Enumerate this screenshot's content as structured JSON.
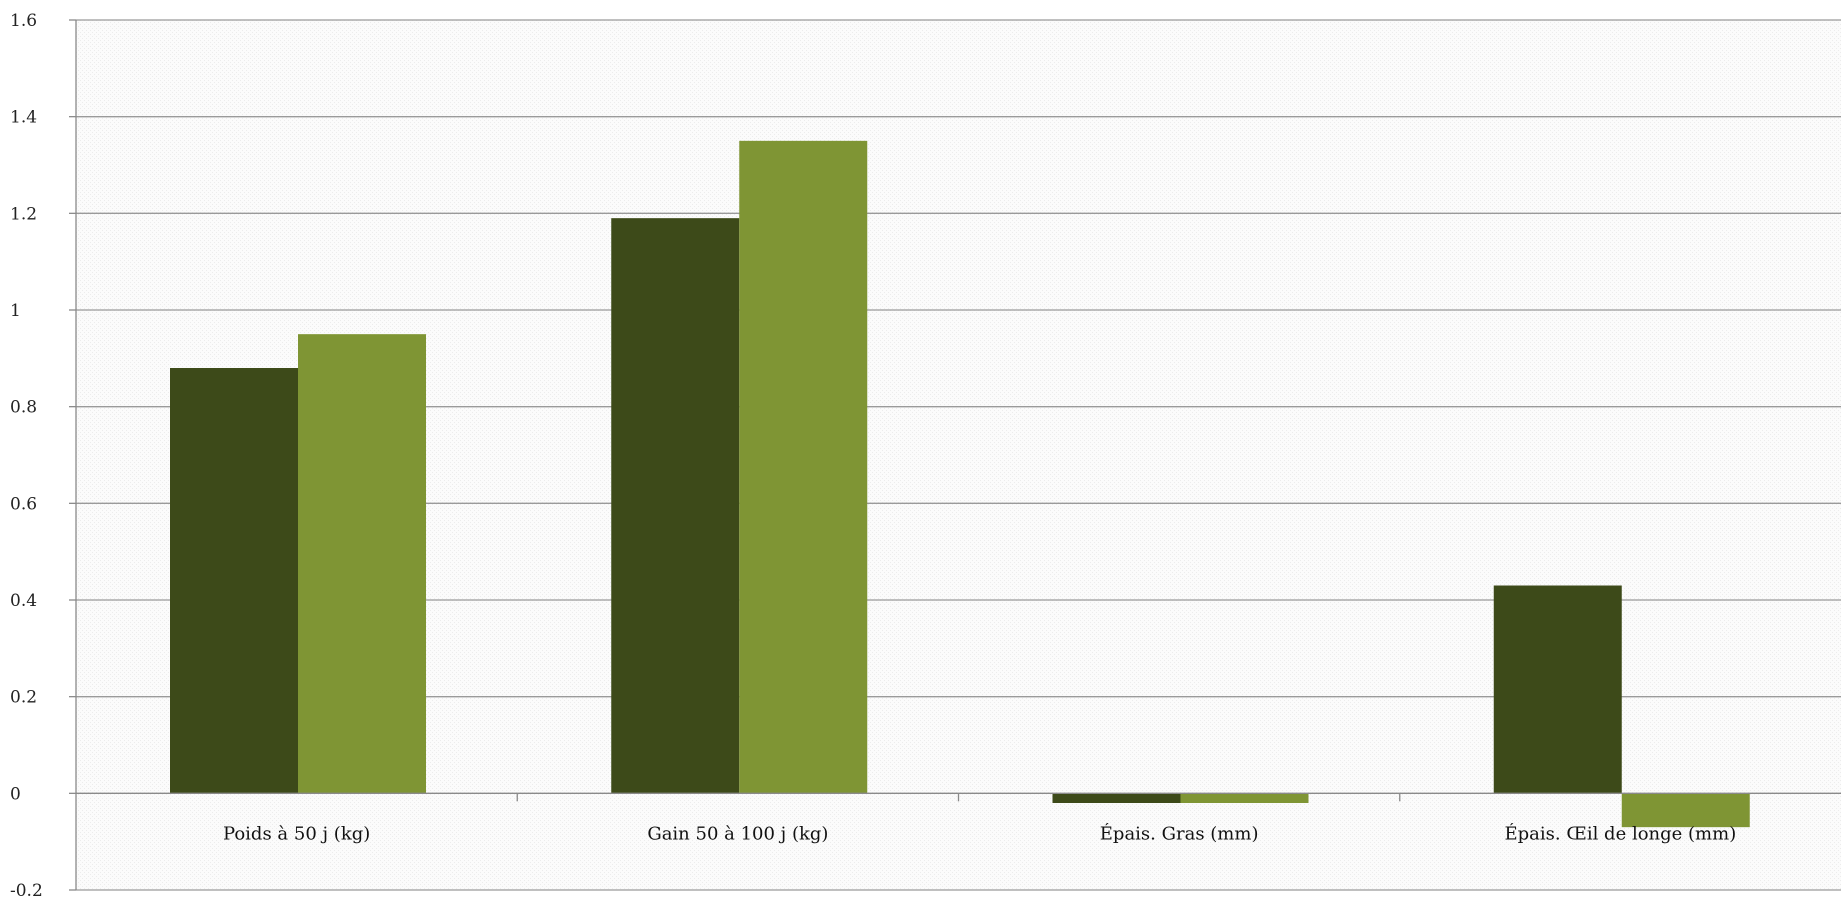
{
  "chart_data": {
    "type": "bar",
    "categories": [
      "Poids à 50 j (kg)",
      "Gain 50 à 100 j (kg)",
      "Épais. Gras (mm)",
      "Épais. Œil de longe (mm)"
    ],
    "series": [
      {
        "values": [
          0.88,
          1.19,
          -0.02,
          0.43
        ],
        "color": "#3d4a19"
      },
      {
        "values": [
          0.95,
          1.35,
          -0.02,
          -0.07
        ],
        "color": "#7f9534"
      }
    ],
    "ylim": [
      -0.2,
      1.6
    ],
    "yticks": [
      "-0.2",
      "0",
      "0.2",
      "0.4",
      "0.6",
      "0.8",
      "1",
      "1.2",
      "1.4",
      "1.6"
    ],
    "grid": true,
    "legend": "none",
    "background_pattern": true
  }
}
